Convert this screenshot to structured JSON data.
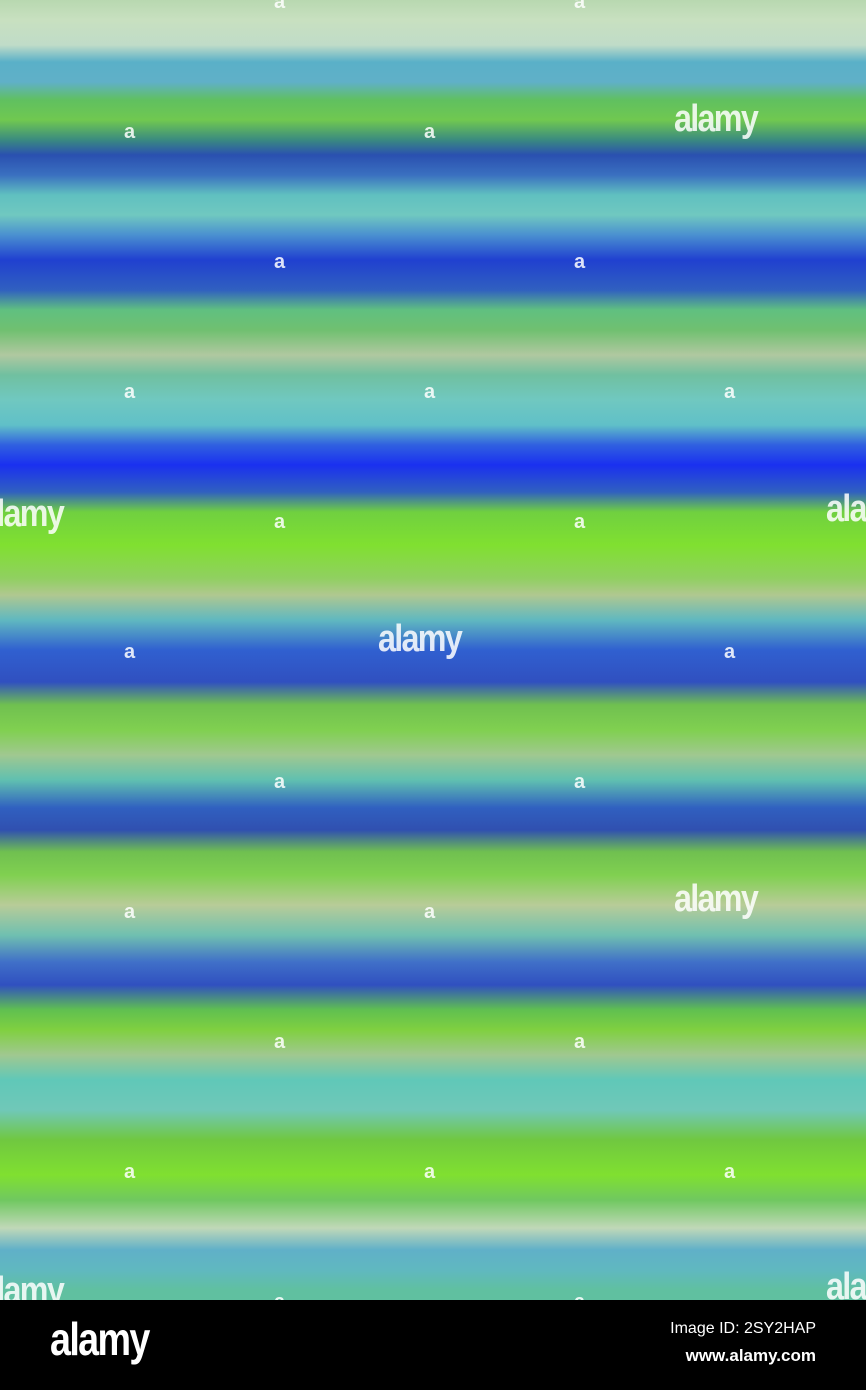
{
  "watermark": {
    "logo_text": "alamy",
    "glyph": "a"
  },
  "footer": {
    "logo_text": "alamy",
    "image_id": "Image ID: 2SY2HAP",
    "url": "www.alamy.com"
  },
  "colors": {
    "footer_background": "#000000",
    "watermark": "#ffffff",
    "dominant": [
      "#1a30f0",
      "#80e030",
      "#70c8c0",
      "#c0dcc8"
    ]
  }
}
